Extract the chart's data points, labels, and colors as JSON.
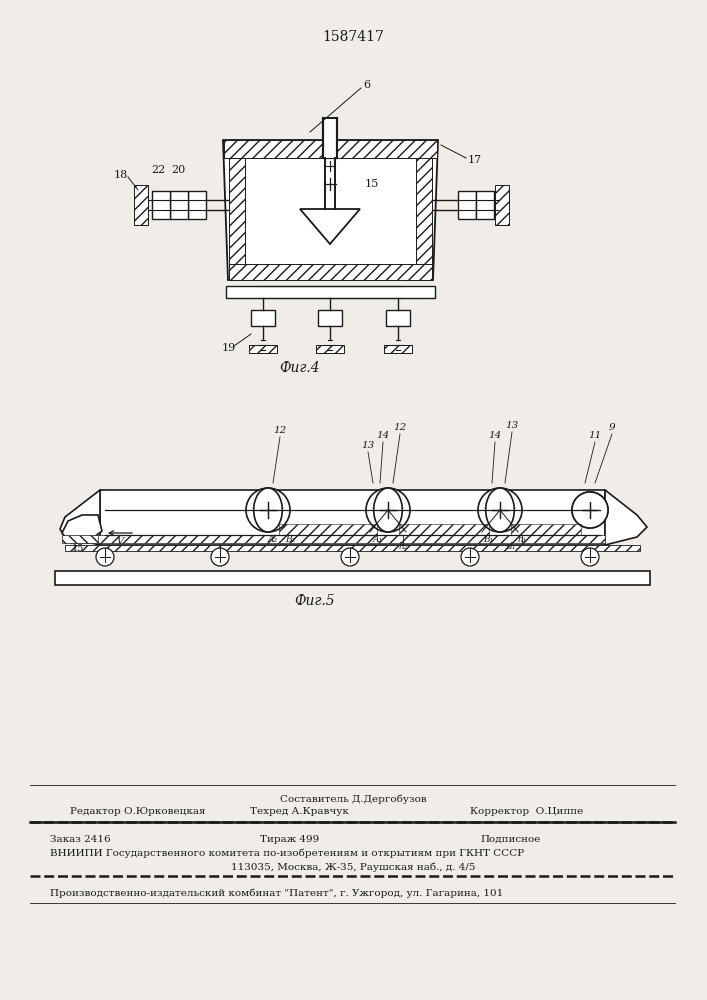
{
  "patent_number": "1587417",
  "fig4_caption": "Фиг.4",
  "fig5_caption": "Фиг.5",
  "footer_sestavitel": "Составитель Д.Дергобузов",
  "footer_editor": "Редактор О.Юрковецкая",
  "footer_tekhred": "Техред А.Кравчук",
  "footer_korrektor": "Корректор  О.Циппе",
  "footer_zakaz": "Заказ 2416",
  "footer_tirazh": "Тираж 499",
  "footer_podpisnoe": "Подписное",
  "footer_vnipi": "ВНИИПИ Государственного комитета по-изобретениям и открытиям при ГКНТ СССР",
  "footer_address": "113035, Москва, Ж-35, Раушская наб., д. 4/5",
  "footer_production": "Производственно-издательский комбинат \"Патент\", г. Ужгород, ул. Гагарина, 101",
  "bg_color": "#f0ede8",
  "line_color": "#1a1a1a"
}
